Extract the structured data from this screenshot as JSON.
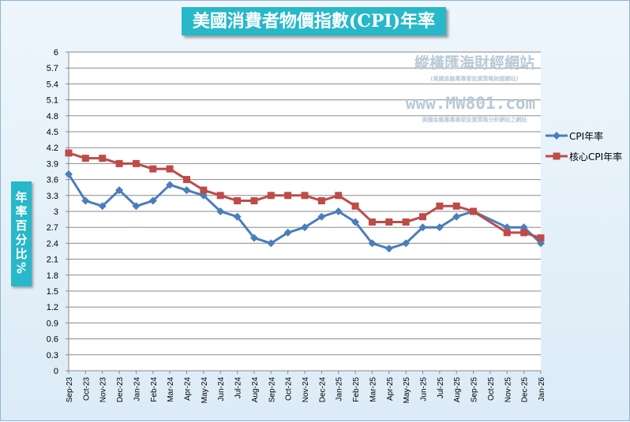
{
  "chart_data": {
    "type": "line",
    "title": "美國消費者物價指數(CPI)年率",
    "ylabel": "年率百分比%",
    "xlabel": "",
    "ylim": [
      0,
      6
    ],
    "yticks": [
      "0",
      "0.3",
      "0.6",
      "0.9",
      "1.2",
      "1.5",
      "1.8",
      "2.1",
      "2.4",
      "2.7",
      "3",
      "3.3",
      "3.6",
      "3.9",
      "4.2",
      "4.5",
      "4.8",
      "5.1",
      "5.4",
      "5.7",
      "6"
    ],
    "categories": [
      "Sep-23",
      "Oct-23",
      "Nov-23",
      "Dec-23",
      "Jan-24",
      "Feb-24",
      "Mar-24",
      "Apr-24",
      "May-24",
      "Jun-24",
      "Jul-24",
      "Aug-24",
      "Sep-24",
      "Oct-24",
      "Nov-24",
      "Dec-24",
      "Jan-25",
      "Feb-25",
      "Mar-25",
      "Apr-25",
      "May-25",
      "Jun-25",
      "Jul-25",
      "Aug-25",
      "Sep-25",
      "Oct-25",
      "Nov-25",
      "Dec-25",
      "Jan-26"
    ],
    "series": [
      {
        "name": "CPI年率",
        "color": "#4a7ebb",
        "marker": "diamond",
        "values": [
          3.7,
          3.2,
          3.1,
          3.4,
          3.1,
          3.2,
          3.5,
          3.4,
          3.3,
          3.0,
          2.9,
          2.5,
          2.4,
          2.6,
          2.7,
          2.9,
          3.0,
          2.8,
          2.4,
          2.3,
          2.4,
          2.7,
          2.7,
          2.9,
          3.0,
          null,
          2.7,
          2.7,
          2.4
        ]
      },
      {
        "name": "核心CPI年率",
        "color": "#be4b48",
        "marker": "square",
        "values": [
          4.1,
          4.0,
          4.0,
          3.9,
          3.9,
          3.8,
          3.8,
          3.6,
          3.4,
          3.3,
          3.2,
          3.2,
          3.3,
          3.3,
          3.3,
          3.2,
          3.3,
          3.1,
          2.8,
          2.8,
          2.8,
          2.9,
          3.1,
          3.1,
          3.0,
          null,
          2.6,
          2.6,
          2.5
        ]
      }
    ],
    "grid": "horizontal",
    "legend": "right"
  },
  "watermark": {
    "line1": "縱橫匯海財經網站",
    "line2": "(美國金融業專家投資策略財經網站)",
    "line3": "www.MW801.com",
    "line4": "美國金融專業專家投資策略分析網站之網站"
  }
}
